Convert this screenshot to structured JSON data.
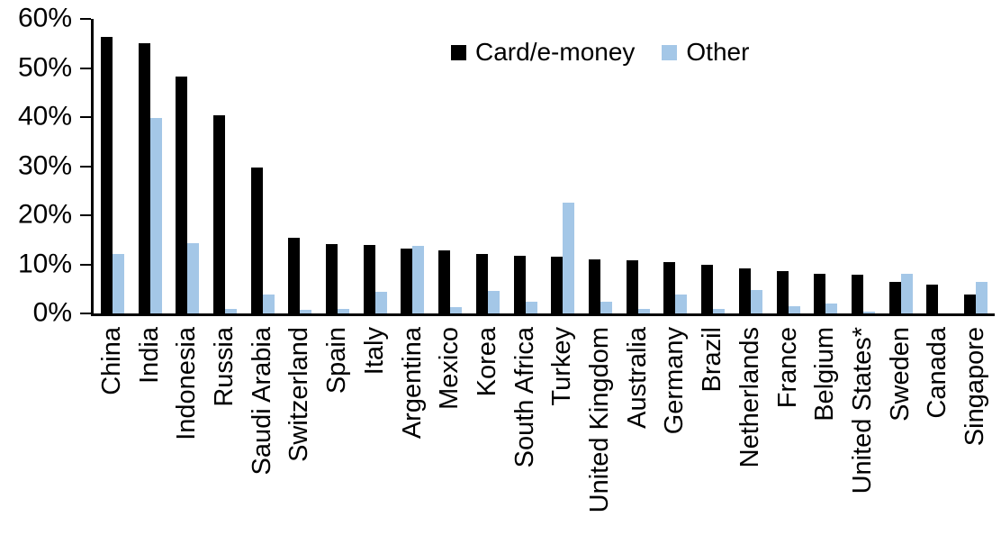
{
  "legend": {
    "items": [
      {
        "label": "Card/e-money",
        "color": "#000000"
      },
      {
        "label": "Other",
        "color": "#A4C7E7"
      }
    ]
  },
  "y_axis": {
    "tick_labels": [
      "0%",
      "10%",
      "20%",
      "30%",
      "40%",
      "50%",
      "60%"
    ],
    "tick_values": [
      0,
      10,
      20,
      30,
      40,
      50,
      60
    ]
  },
  "chart_data": {
    "type": "bar",
    "title": "",
    "xlabel": "",
    "ylabel": "",
    "ylim": [
      0,
      60
    ],
    "grid": false,
    "legend_position": "top-center",
    "categories": [
      "China",
      "India",
      "Indonesia",
      "Russia",
      "Saudi Arabia",
      "Switzerland",
      "Spain",
      "Italy",
      "Argentina",
      "Mexico",
      "Korea",
      "South Africa",
      "Turkey",
      "United Kingdom",
      "Australia",
      "Germany",
      "Brazil",
      "Netherlands",
      "France",
      "Belgium",
      "United States*",
      "Sweden",
      "Canada",
      "Singapore"
    ],
    "series": [
      {
        "name": "Card/e-money",
        "color": "#000000",
        "values": [
          56.3,
          55.1,
          48.2,
          40.4,
          29.8,
          15.5,
          14.1,
          14.0,
          13.3,
          12.9,
          12.2,
          11.7,
          11.6,
          11.0,
          10.8,
          10.5,
          9.9,
          9.1,
          8.6,
          8.1,
          7.9,
          6.4,
          5.8,
          3.8
        ]
      },
      {
        "name": "Other",
        "color": "#A4C7E7",
        "values": [
          12.2,
          39.8,
          14.4,
          0.9,
          3.9,
          0.8,
          0.9,
          4.4,
          13.8,
          1.3,
          4.5,
          2.4,
          22.6,
          2.3,
          0.9,
          3.9,
          1.0,
          4.8,
          1.5,
          2.0,
          0.3,
          8.0,
          0,
          6.5
        ]
      }
    ]
  }
}
